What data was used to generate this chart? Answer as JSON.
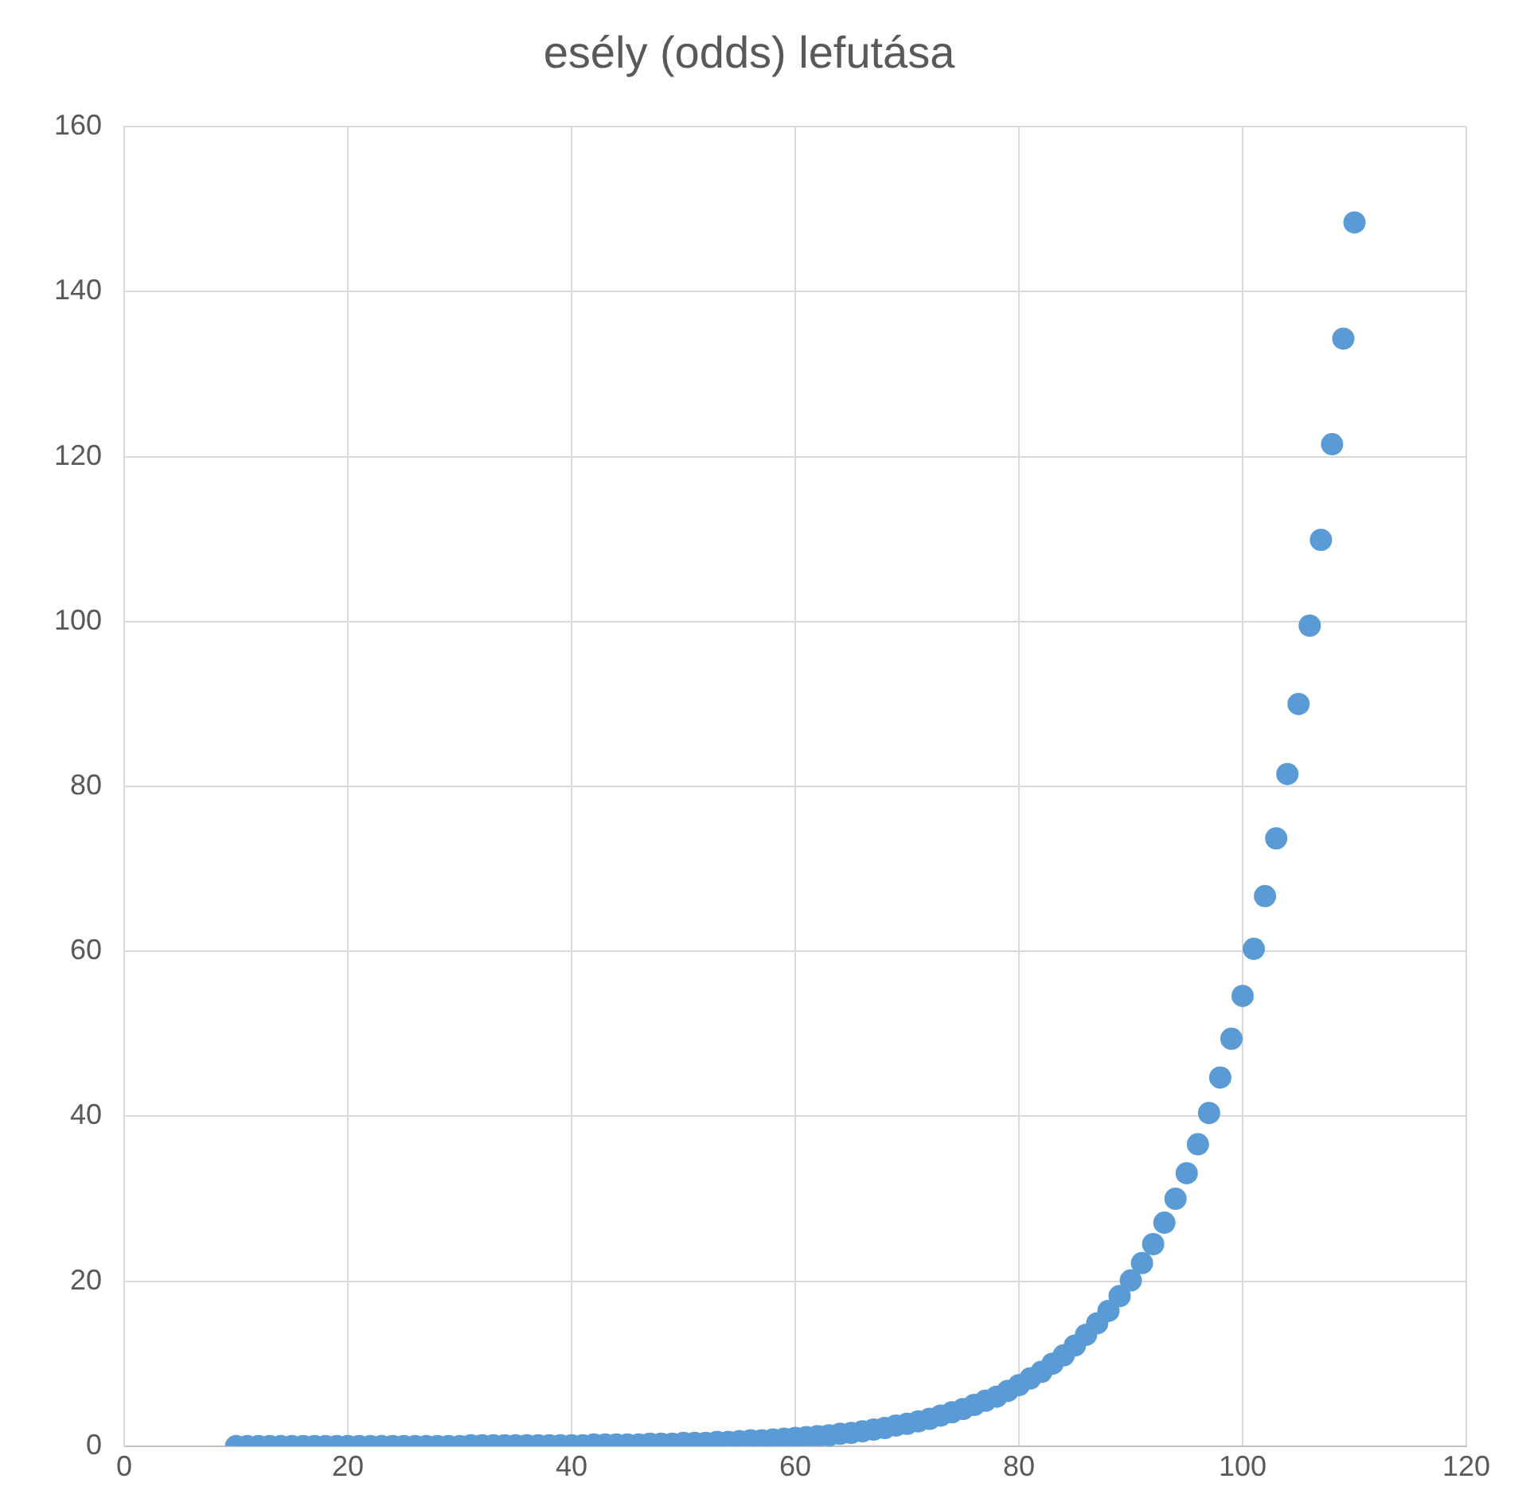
{
  "chart_data": {
    "type": "scatter",
    "title": "esély (odds) lefutása",
    "x": [
      10,
      11,
      12,
      13,
      14,
      15,
      16,
      17,
      18,
      19,
      20,
      21,
      22,
      23,
      24,
      25,
      26,
      27,
      28,
      29,
      30,
      31,
      32,
      33,
      34,
      35,
      36,
      37,
      38,
      39,
      40,
      41,
      42,
      43,
      44,
      45,
      46,
      47,
      48,
      49,
      50,
      51,
      52,
      53,
      54,
      55,
      56,
      57,
      58,
      59,
      60,
      61,
      62,
      63,
      64,
      65,
      66,
      67,
      68,
      69,
      70,
      71,
      72,
      73,
      74,
      75,
      76,
      77,
      78,
      79,
      80,
      81,
      82,
      83,
      84,
      85,
      86,
      87,
      88,
      89,
      90,
      91,
      92,
      93,
      94,
      95,
      96,
      97,
      98,
      99,
      100,
      101,
      102,
      103,
      104,
      105,
      106,
      107,
      108,
      109,
      110
    ],
    "series": [
      {
        "color": "#5b9bd5",
        "values": [
          0.0,
          0.0,
          0.0,
          0.0,
          0.0,
          0.0,
          0.0,
          0.0,
          0.0,
          0.0,
          0.0,
          0.0,
          0.0,
          0.0,
          0.0,
          0.0,
          0.0,
          0.0,
          0.0,
          0.0,
          0.0,
          0.1,
          0.1,
          0.1,
          0.1,
          0.1,
          0.1,
          0.1,
          0.1,
          0.1,
          0.1,
          0.1,
          0.2,
          0.2,
          0.2,
          0.2,
          0.2,
          0.3,
          0.3,
          0.3,
          0.4,
          0.4,
          0.4,
          0.5,
          0.5,
          0.6,
          0.7,
          0.7,
          0.8,
          0.9,
          1.0,
          1.1,
          1.2,
          1.3,
          1.5,
          1.6,
          1.8,
          2.0,
          2.2,
          2.5,
          2.7,
          3.0,
          3.3,
          3.7,
          4.1,
          4.5,
          5.0,
          5.5,
          6.0,
          6.7,
          7.4,
          8.2,
          9.0,
          10.0,
          11.0,
          12.2,
          13.5,
          14.9,
          16.4,
          18.2,
          20.1,
          22.2,
          24.5,
          27.1,
          30.0,
          33.1,
          36.6,
          40.4,
          44.7,
          49.4,
          54.6,
          60.3,
          66.7,
          73.7,
          81.5,
          90.0,
          99.5,
          109.9,
          121.5,
          134.3,
          148.4
        ]
      }
    ],
    "xlim": [
      0,
      120
    ],
    "xticks": [
      0,
      20,
      40,
      60,
      80,
      100,
      120
    ],
    "ylim": [
      0,
      160
    ],
    "yticks": [
      0,
      20,
      40,
      60,
      80,
      100,
      120,
      140,
      160
    ],
    "grid": true,
    "legend": false,
    "marker": "circle"
  }
}
